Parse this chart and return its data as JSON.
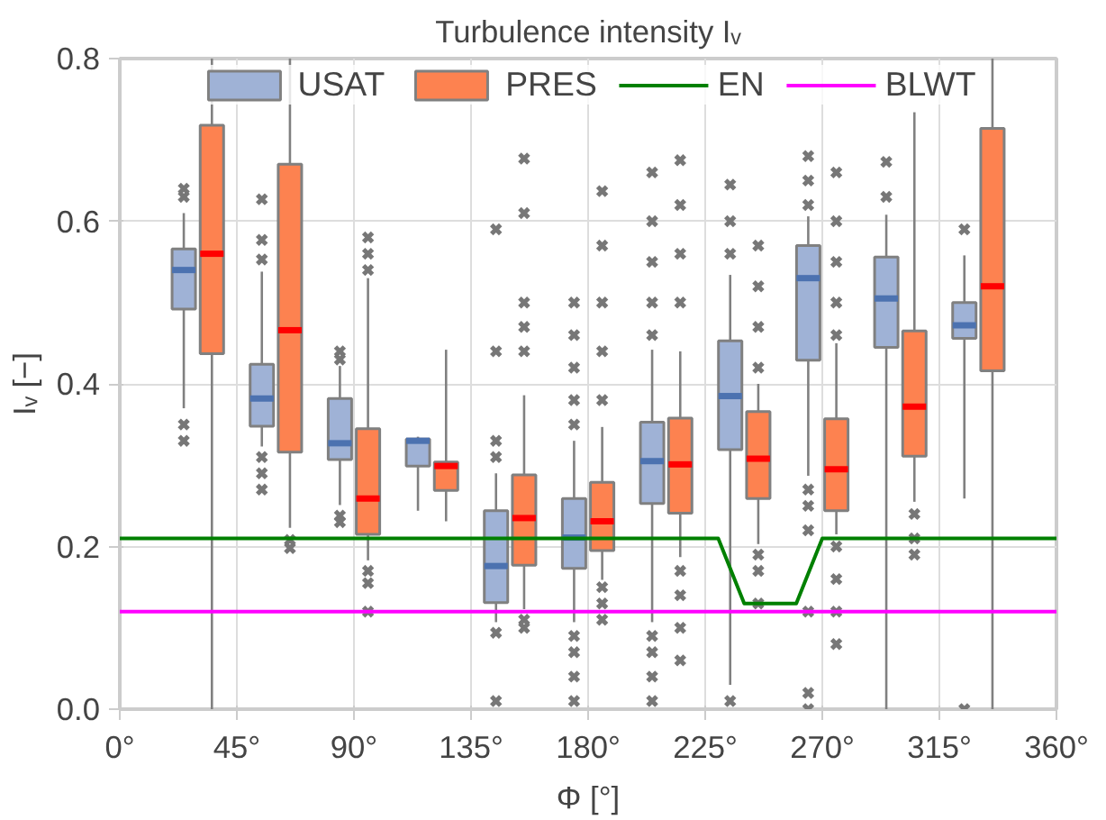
{
  "chart_data": {
    "type": "box",
    "title": "Turbulence intensity Iᵥ",
    "xlabel": "Φ [°]",
    "ylabel": "Iᵥ [−]",
    "x": [
      30,
      60,
      90,
      120,
      150,
      180,
      210,
      240,
      270,
      300,
      330
    ],
    "xlim": [
      0,
      360
    ],
    "xticks": [
      {
        "value": 0,
        "label": "0°"
      },
      {
        "value": 45,
        "label": "45°"
      },
      {
        "value": 90,
        "label": "90°"
      },
      {
        "value": 135,
        "label": "135°"
      },
      {
        "value": 180,
        "label": "180°"
      },
      {
        "value": 225,
        "label": "225°"
      },
      {
        "value": 270,
        "label": "270°"
      },
      {
        "value": 315,
        "label": "315°"
      },
      {
        "value": 360,
        "label": "360°"
      }
    ],
    "ylim": [
      0,
      0.8
    ],
    "yticks": [
      {
        "value": 0,
        "label": "0.0"
      },
      {
        "value": 0.2,
        "label": "0.2"
      },
      {
        "value": 0.4,
        "label": "0.4"
      },
      {
        "value": 0.6,
        "label": "0.6"
      },
      {
        "value": 0.8,
        "label": "0.8"
      }
    ],
    "grid": true,
    "legend": "top",
    "series": [
      {
        "name": "USAT",
        "color": "#9fb2d6",
        "boxes": [
          {
            "low": 0.37,
            "q1": 0.492,
            "median": 0.54,
            "q3": 0.566,
            "high": 0.61,
            "outliers": [
              0.63,
              0.64,
              0.35,
              0.33
            ]
          },
          {
            "low": 0.323,
            "q1": 0.348,
            "median": 0.382,
            "q3": 0.424,
            "high": 0.538,
            "outliers": [
              0.627,
              0.577,
              0.553,
              0.31,
              0.29,
              0.27
            ]
          },
          {
            "low": 0.251,
            "q1": 0.307,
            "median": 0.327,
            "q3": 0.382,
            "high": 0.422,
            "outliers": [
              0.43,
              0.44,
              0.238,
              0.23
            ]
          },
          {
            "low": 0.244,
            "q1": 0.299,
            "median": 0.33,
            "q3": 0.332,
            "high": 0.335
          },
          {
            "low": 0.107,
            "q1": 0.131,
            "median": 0.176,
            "q3": 0.244,
            "high": 0.29,
            "outliers": [
              0.59,
              0.44,
              0.33,
              0.31,
              0.094,
              0.01
            ]
          },
          {
            "low": 0.107,
            "q1": 0.173,
            "median": 0.211,
            "q3": 0.259,
            "high": 0.33,
            "outliers": [
              0.5,
              0.46,
              0.42,
              0.38,
              0.35,
              0.09,
              0.07,
              0.04,
              0.01
            ]
          },
          {
            "low": 0.107,
            "q1": 0.253,
            "median": 0.305,
            "q3": 0.353,
            "high": 0.442,
            "outliers": [
              0.66,
              0.6,
              0.55,
              0.5,
              0.46,
              0.09,
              0.07,
              0.04,
              0.01
            ]
          },
          {
            "low": 0.03,
            "q1": 0.319,
            "median": 0.385,
            "q3": 0.453,
            "high": 0.534,
            "outliers": [
              0.645,
              0.6,
              0.56,
              0.01
            ]
          },
          {
            "low": 0.287,
            "q1": 0.429,
            "median": 0.53,
            "q3": 0.57,
            "high": 0.606,
            "outliers": [
              0.68,
              0.65,
              0.62,
              0.27,
              0.25,
              0.22,
              0.12,
              0.02,
              0.0
            ]
          },
          {
            "low": 0.0,
            "q1": 0.445,
            "median": 0.505,
            "q3": 0.556,
            "high": 0.608,
            "outliers": [
              0.673,
              0.63
            ]
          },
          {
            "low": 0.259,
            "q1": 0.456,
            "median": 0.472,
            "q3": 0.5,
            "high": 0.558,
            "outliers": [
              0.59,
              0.0
            ]
          }
        ]
      },
      {
        "name": "PRES",
        "color": "#fd8250",
        "boxes": [
          {
            "low": 0.0,
            "q1": 0.437,
            "median": 0.56,
            "q3": 0.718,
            "high": 0.8
          },
          {
            "low": 0.223,
            "q1": 0.316,
            "median": 0.466,
            "q3": 0.67,
            "high": 0.8,
            "outliers": [
              0.208,
              0.198
            ]
          },
          {
            "low": 0.183,
            "q1": 0.215,
            "median": 0.259,
            "q3": 0.345,
            "high": 0.53,
            "outliers": [
              0.58,
              0.56,
              0.54,
              0.17,
              0.155,
              0.12
            ]
          },
          {
            "low": 0.231,
            "q1": 0.269,
            "median": 0.299,
            "q3": 0.304,
            "high": 0.442
          },
          {
            "low": 0.123,
            "q1": 0.177,
            "median": 0.235,
            "q3": 0.288,
            "high": 0.386,
            "outliers": [
              0.677,
              0.61,
              0.5,
              0.47,
              0.44,
              0.11,
              0.1
            ]
          },
          {
            "low": 0.159,
            "q1": 0.195,
            "median": 0.231,
            "q3": 0.279,
            "high": 0.347,
            "outliers": [
              0.637,
              0.57,
              0.5,
              0.44,
              0.38,
              0.15,
              0.13,
              0.11
            ]
          },
          {
            "low": 0.187,
            "q1": 0.241,
            "median": 0.301,
            "q3": 0.358,
            "high": 0.44,
            "outliers": [
              0.675,
              0.62,
              0.56,
              0.5,
              0.17,
              0.14,
              0.1,
              0.06
            ]
          },
          {
            "low": 0.203,
            "q1": 0.259,
            "median": 0.308,
            "q3": 0.366,
            "high": 0.4,
            "outliers": [
              0.57,
              0.52,
              0.47,
              0.42,
              0.19,
              0.17,
              0.13
            ]
          },
          {
            "low": 0.215,
            "q1": 0.244,
            "median": 0.295,
            "q3": 0.357,
            "high": 0.45,
            "outliers": [
              0.66,
              0.6,
              0.55,
              0.5,
              0.46,
              0.2,
              0.16,
              0.12,
              0.08
            ]
          },
          {
            "low": 0.255,
            "q1": 0.311,
            "median": 0.372,
            "q3": 0.465,
            "high": 0.734,
            "outliers": [
              0.24,
              0.21,
              0.19
            ]
          },
          {
            "low": 0.0,
            "q1": 0.416,
            "median": 0.52,
            "q3": 0.714,
            "high": 0.8
          }
        ]
      },
      {
        "name": "EN",
        "type": "line",
        "color": "#008000",
        "x": [
          0,
          230,
          240,
          260,
          270,
          360
        ],
        "values": [
          0.21,
          0.21,
          0.13,
          0.13,
          0.21,
          0.21
        ]
      },
      {
        "name": "BLWT",
        "type": "line",
        "color": "#ff00ff",
        "x": [
          0,
          360
        ],
        "values": [
          0.12,
          0.12
        ]
      }
    ]
  }
}
